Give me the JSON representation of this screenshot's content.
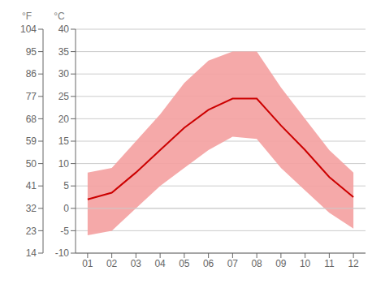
{
  "chart_data": {
    "type": "line",
    "x": [
      1,
      2,
      3,
      4,
      5,
      6,
      7,
      8,
      9,
      10,
      11,
      12
    ],
    "values": [
      2.0,
      3.5,
      8.0,
      13.0,
      18.0,
      22.0,
      24.5,
      24.5,
      18.5,
      13.0,
      7.0,
      2.5
    ],
    "color": "#cc0000",
    "band": {
      "min": [
        -6.0,
        -5.0,
        0.0,
        5.0,
        9.0,
        13.0,
        16.0,
        15.5,
        9.0,
        4.0,
        -1.0,
        -4.5
      ],
      "max": [
        8.0,
        9.0,
        15.0,
        21.0,
        28.0,
        33.0,
        35.0,
        35.0,
        27.0,
        20.0,
        13.0,
        8.0
      ],
      "color": "#f4a0a0"
    },
    "xlim": [
      0.5,
      12.5
    ],
    "xticks": [
      {
        "value": 1,
        "label": "01"
      },
      {
        "value": 2,
        "label": "02"
      },
      {
        "value": 3,
        "label": "03"
      },
      {
        "value": 4,
        "label": "04"
      },
      {
        "value": 5,
        "label": "05"
      },
      {
        "value": 6,
        "label": "06"
      },
      {
        "value": 7,
        "label": "07"
      },
      {
        "value": 8,
        "label": "08"
      },
      {
        "value": 9,
        "label": "09"
      },
      {
        "value": 10,
        "label": "10"
      },
      {
        "value": 11,
        "label": "11"
      },
      {
        "value": 12,
        "label": "12"
      }
    ],
    "ylim": [
      -10,
      40
    ],
    "yticks": [
      -10,
      -5,
      0,
      5,
      10,
      15,
      20,
      25,
      30,
      35,
      40
    ],
    "y_label": "°C",
    "y2lim": [
      14,
      104
    ],
    "y2ticks": [
      14,
      23,
      32,
      41,
      50,
      59,
      68,
      77,
      86,
      95,
      104
    ],
    "y2_label": "°F",
    "grid": true,
    "hlines": [
      0
    ]
  }
}
